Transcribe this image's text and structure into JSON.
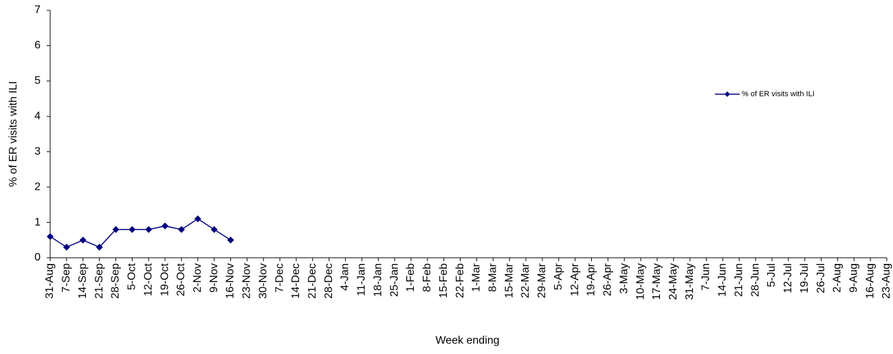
{
  "chart_data": {
    "type": "line",
    "y_label": "% of ER visits with ILI",
    "x_label": "Week ending",
    "categories": [
      "31-Aug",
      "7-Sep",
      "14-Sep",
      "21-Sep",
      "28-Sep",
      "5-Oct",
      "12-Oct",
      "19-Oct",
      "26-Oct",
      "2-Nov",
      "9-Nov",
      "16-Nov",
      "23-Nov",
      "30-Nov",
      "7-Dec",
      "14-Dec",
      "21-Dec",
      "28-Dec",
      "4-Jan",
      "11-Jan",
      "18-Jan",
      "25-Jan",
      "1-Feb",
      "8-Feb",
      "15-Feb",
      "22-Feb",
      "1-Mar",
      "8-Mar",
      "15-Mar",
      "22-Mar",
      "29-Mar",
      "5-Apr",
      "12-Apr",
      "19-Apr",
      "26-Apr",
      "3-May",
      "10-May",
      "17-May",
      "24-May",
      "31-May",
      "7-Jun",
      "14-Jun",
      "21-Jun",
      "28-Jun",
      "5-Jul",
      "12-Jul",
      "19-Jul",
      "26-Jul",
      "2-Aug",
      "9-Aug",
      "16-Aug",
      "23-Aug"
    ],
    "series": [
      {
        "name": "% of ER visits with ILI",
        "color": "#000080",
        "values": [
          0.6,
          0.3,
          0.5,
          0.3,
          0.8,
          0.8,
          0.8,
          0.9,
          0.8,
          1.1,
          0.8,
          0.5,
          null,
          null,
          null,
          null,
          null,
          null,
          null,
          null,
          null,
          null,
          null,
          null,
          null,
          null,
          null,
          null,
          null,
          null,
          null,
          null,
          null,
          null,
          null,
          null,
          null,
          null,
          null,
          null,
          null,
          null,
          null,
          null,
          null,
          null,
          null,
          null,
          null,
          null,
          null,
          null
        ]
      }
    ],
    "ylim": [
      0,
      7
    ],
    "yticks": [
      0,
      1,
      2,
      3,
      4,
      5,
      6,
      7
    ],
    "grid": false,
    "legend": "right"
  }
}
